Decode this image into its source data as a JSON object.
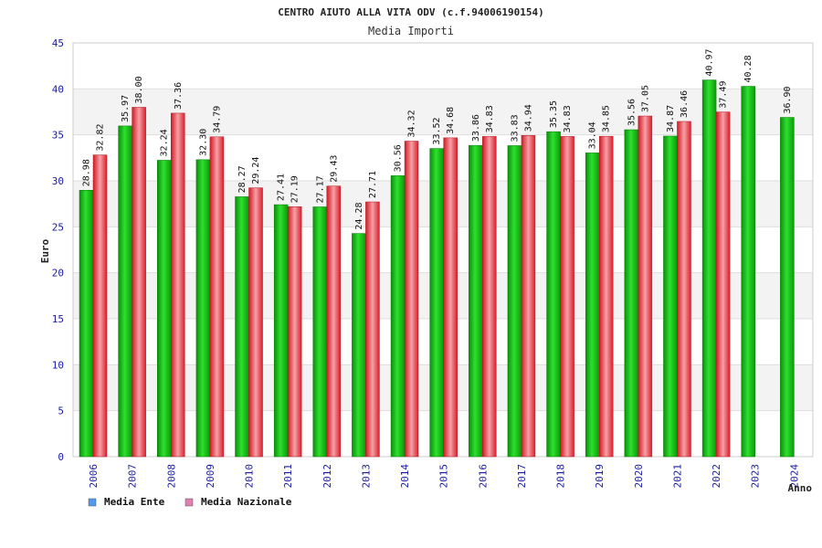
{
  "chart_data": {
    "type": "bar",
    "title": "CENTRO AIUTO ALLA VITA ODV (c.f.94006190154)",
    "subtitle": "Media Importi",
    "xlabel": "Anno",
    "ylabel": "Euro",
    "ylim": [
      0,
      45
    ],
    "yticks": [
      0,
      5,
      10,
      15,
      20,
      25,
      30,
      35,
      40,
      45
    ],
    "categories": [
      "2006",
      "2007",
      "2008",
      "2009",
      "2010",
      "2011",
      "2012",
      "2013",
      "2014",
      "2015",
      "2016",
      "2017",
      "2018",
      "2019",
      "2020",
      "2021",
      "2022",
      "2023",
      "2024"
    ],
    "series": [
      {
        "name": "Media Ente",
        "color": "#10b010",
        "legend_color": "#5599ee",
        "values": [
          28.98,
          35.97,
          32.24,
          32.3,
          28.27,
          27.41,
          27.17,
          24.28,
          30.56,
          33.52,
          33.86,
          33.83,
          35.35,
          33.04,
          35.56,
          34.87,
          40.97,
          40.28,
          36.9
        ],
        "labels": [
          "28.98",
          "35.97",
          "32.24",
          "32.30",
          "28.27",
          "27.41",
          "27.17",
          "24.28",
          "30.56",
          "33.52",
          "33.86",
          "33.83",
          "35.35",
          "33.04",
          "35.56",
          "34.87",
          "40.97",
          "40.28",
          "36.90"
        ]
      },
      {
        "name": "Media Nazionale",
        "color": "#e0303a",
        "legend_color": "#e080b0",
        "values": [
          32.82,
          38.0,
          37.36,
          34.79,
          29.24,
          27.19,
          29.43,
          27.71,
          34.32,
          34.68,
          34.83,
          34.94,
          34.83,
          34.85,
          37.05,
          36.46,
          37.49,
          null,
          null
        ],
        "labels": [
          "32.82",
          "38.00",
          "37.36",
          "34.79",
          "29.24",
          "27.19",
          "29.43",
          "27.71",
          "34.32",
          "34.68",
          "34.83",
          "34.94",
          "34.83",
          "34.85",
          "37.05",
          "36.46",
          "37.49",
          null,
          null
        ]
      }
    ],
    "grid": true,
    "legend_position": "bottom-left"
  }
}
